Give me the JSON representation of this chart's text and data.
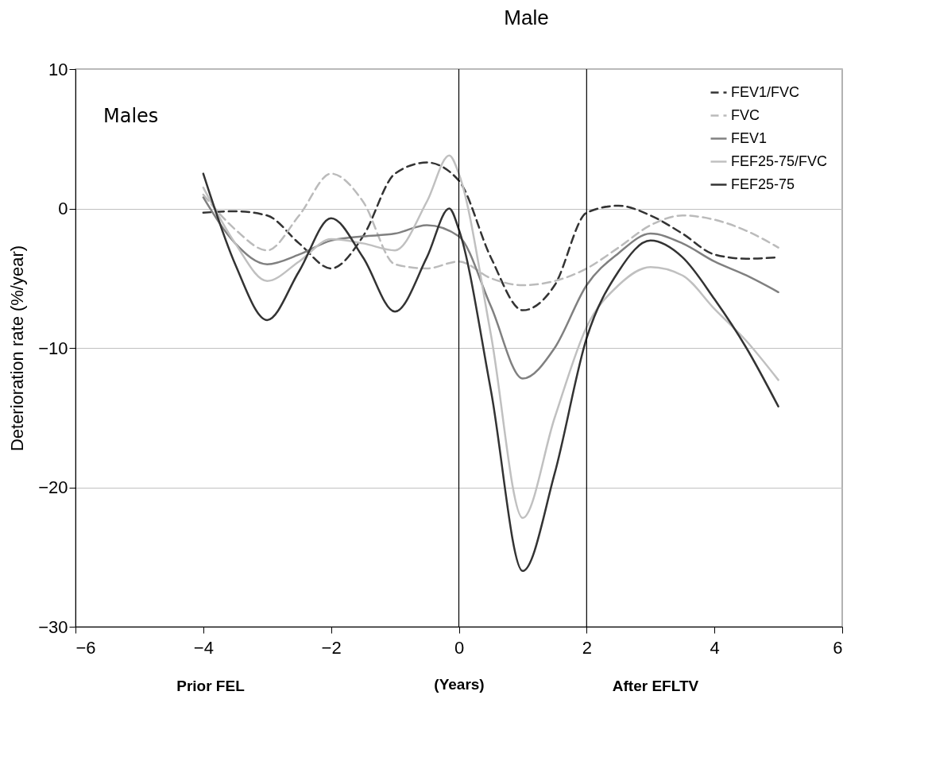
{
  "chart_data": {
    "type": "line",
    "title": "Male",
    "xlabel": "(Years)",
    "ylabel": "Deterioration rate (%/year)",
    "annotations": [
      "Males",
      "Prior FEL",
      "After EFLTV"
    ],
    "xlim": [
      -6,
      6
    ],
    "xticks": [
      -6,
      -4,
      -2,
      0,
      2,
      4,
      6
    ],
    "ylim": [
      -30,
      10
    ],
    "yticks": [
      -30,
      -20,
      -10,
      0,
      10
    ],
    "grid": "y",
    "legend": "top right",
    "ref_lines": [
      {
        "axis": "x",
        "value": 0,
        "color": "#000000"
      },
      {
        "axis": "x",
        "value": 2,
        "color": "#000000"
      }
    ],
    "x": [
      -4,
      -3.5,
      -3,
      -2.5,
      -2,
      -1.5,
      -1,
      -0.5,
      0,
      0.5,
      1,
      1.5,
      2,
      2.5,
      3,
      3.5,
      4,
      4.5,
      5
    ],
    "series": [
      {
        "name": "FEV1/FVC",
        "color": "#333333",
        "line_style": "dashed",
        "values": [
          -0.3,
          -0.2,
          -0.5,
          -2.5,
          -4.3,
          -2,
          2.5,
          3.3,
          2,
          -3.5,
          -7.3,
          -5.5,
          -0.3,
          0.2,
          -0.5,
          -1.8,
          -3.3,
          -3.6,
          -3.5
        ]
      },
      {
        "name": "FVC",
        "color": "#bbbbbb",
        "line_style": "dashed",
        "values": [
          1,
          -1.5,
          -3,
          -0.5,
          2.5,
          0.5,
          -4,
          -4.3,
          -3.8,
          -5,
          -5.5,
          -5.2,
          -4.3,
          -2.8,
          -1.2,
          -0.5,
          -0.8,
          -1.6,
          -2.8
        ]
      },
      {
        "name": "FEV1",
        "color": "#808080",
        "line_style": "solid",
        "values": [
          0.8,
          -2.5,
          -4,
          -3.3,
          -2.3,
          -2,
          -1.8,
          -1.2,
          -2,
          -7,
          -12.2,
          -10,
          -5.5,
          -3.2,
          -1.8,
          -2.5,
          -3.8,
          -4.8,
          -6
        ]
      },
      {
        "name": "FEF25-75/FVC",
        "color": "#c0c0c0",
        "line_style": "solid",
        "x": [
          -4,
          -3.5,
          -3,
          -2.5,
          -2,
          -1.5,
          -1,
          -0.5,
          -0.15,
          0,
          0.5,
          1,
          1.5,
          2,
          2.5,
          3,
          3.5,
          4,
          4.5,
          5
        ],
        "values": [
          1.5,
          -2.5,
          -5.2,
          -3.8,
          -2.2,
          -2.5,
          -3,
          0.5,
          3.8,
          2.5,
          -9,
          -22.2,
          -15,
          -8.5,
          -5.5,
          -4.2,
          -4.8,
          -7.2,
          -9.5,
          -12.3
        ]
      },
      {
        "name": "FEF25-75",
        "color": "#333333",
        "line_style": "solid",
        "x": [
          -4,
          -3.5,
          -3,
          -2.5,
          -2,
          -1.5,
          -1,
          -0.5,
          -0.15,
          0,
          0.5,
          1,
          1.5,
          2,
          2.5,
          3,
          3.5,
          4,
          4.5,
          5
        ],
        "values": [
          2.5,
          -4,
          -8,
          -4.5,
          -0.7,
          -3.5,
          -7.4,
          -3.5,
          0,
          -1.5,
          -13,
          -26,
          -19,
          -9.3,
          -4.5,
          -2.3,
          -3.5,
          -6.5,
          -10,
          -14.2
        ]
      }
    ]
  }
}
